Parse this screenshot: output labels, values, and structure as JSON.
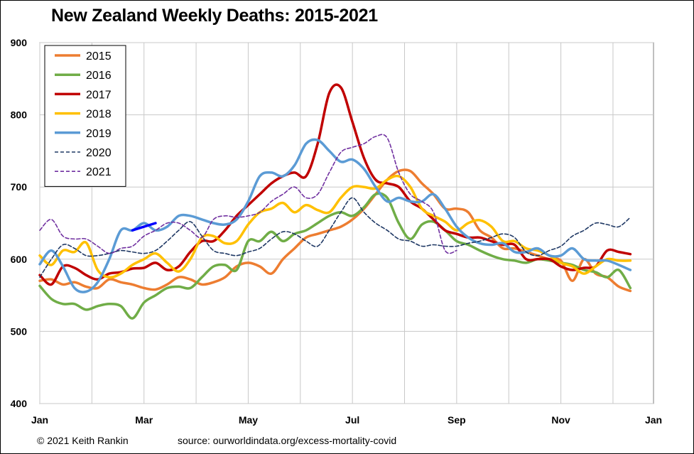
{
  "title": "New Zealand Weekly Deaths: 2015-2021",
  "footer": {
    "copyright": "© 2021 Keith Rankin",
    "source": "source:  ourworldindata.org/excess-mortality-covid"
  },
  "chart_data": {
    "type": "line",
    "title": "New Zealand Weekly Deaths: 2015-2021",
    "xlabel": "",
    "ylabel": "",
    "ylim": [
      400,
      900
    ],
    "y_ticks": [
      400,
      500,
      600,
      700,
      800,
      900
    ],
    "x_unit": "week",
    "xlim": [
      1,
      53
    ],
    "x_tick_labels": [
      "Jan",
      "Mar",
      "May",
      "Jul",
      "Sep",
      "Nov",
      "Jan"
    ],
    "x_tick_weeks": [
      1,
      10,
      19,
      28,
      37,
      46,
      54
    ],
    "grid": true,
    "legend_position": "top-left",
    "series": [
      {
        "name": "2015",
        "color": "#ED7D31",
        "style": "solid",
        "weeks": [
          1,
          2,
          3,
          4,
          5,
          6,
          7,
          8,
          9,
          10,
          11,
          12,
          13,
          14,
          15,
          16,
          17,
          18,
          19,
          20,
          21,
          22,
          23,
          24,
          25,
          26,
          27,
          28,
          29,
          30,
          31,
          32,
          33,
          34,
          35,
          36,
          37,
          38,
          39,
          40,
          41,
          42,
          43,
          44,
          45,
          46,
          47,
          48,
          49,
          50,
          51,
          52
        ],
        "values": [
          570,
          572,
          565,
          568,
          562,
          560,
          572,
          568,
          565,
          560,
          558,
          565,
          575,
          572,
          565,
          568,
          575,
          590,
          595,
          590,
          580,
          600,
          615,
          630,
          635,
          640,
          645,
          655,
          670,
          690,
          710,
          722,
          722,
          705,
          690,
          670,
          670,
          665,
          640,
          630,
          615,
          615,
          610,
          605,
          600,
          598,
          570,
          600,
          580,
          575,
          562,
          556
        ]
      },
      {
        "name": "2016",
        "color": "#70AD47",
        "style": "solid",
        "weeks": [
          1,
          2,
          3,
          4,
          5,
          6,
          7,
          8,
          9,
          10,
          11,
          12,
          13,
          14,
          15,
          16,
          17,
          18,
          19,
          20,
          21,
          22,
          23,
          24,
          25,
          26,
          27,
          28,
          29,
          30,
          31,
          32,
          33,
          34,
          35,
          36,
          37,
          38,
          39,
          40,
          41,
          42,
          43,
          44,
          45,
          46,
          47,
          48,
          49,
          50,
          51,
          52
        ],
        "values": [
          563,
          545,
          538,
          538,
          530,
          535,
          538,
          535,
          518,
          540,
          550,
          560,
          562,
          560,
          575,
          590,
          592,
          585,
          625,
          625,
          638,
          625,
          635,
          640,
          650,
          660,
          665,
          660,
          672,
          690,
          685,
          650,
          628,
          648,
          652,
          640,
          625,
          620,
          612,
          605,
          600,
          598,
          595,
          600,
          598,
          595,
          592,
          585,
          582,
          575,
          585,
          560
        ]
      },
      {
        "name": "2017",
        "color": "#C00000",
        "style": "solid",
        "weeks": [
          1,
          2,
          3,
          4,
          5,
          6,
          7,
          8,
          9,
          10,
          11,
          12,
          13,
          14,
          15,
          16,
          17,
          18,
          19,
          20,
          21,
          22,
          23,
          24,
          25,
          26,
          27,
          28,
          29,
          30,
          31,
          32,
          33,
          34,
          35,
          36,
          37,
          38,
          39,
          40,
          41,
          42,
          43,
          44,
          45,
          46,
          47,
          48,
          49,
          50,
          51,
          52
        ],
        "values": [
          578,
          565,
          590,
          588,
          578,
          572,
          580,
          582,
          587,
          588,
          595,
          585,
          590,
          610,
          625,
          625,
          640,
          660,
          675,
          690,
          705,
          715,
          720,
          715,
          760,
          830,
          838,
          790,
          740,
          710,
          705,
          700,
          680,
          670,
          655,
          640,
          635,
          630,
          630,
          625,
          620,
          620,
          600,
          600,
          600,
          590,
          585,
          588,
          590,
          612,
          610,
          607
        ]
      },
      {
        "name": "2018",
        "color": "#FFC000",
        "style": "solid",
        "weeks": [
          1,
          2,
          3,
          4,
          5,
          6,
          7,
          8,
          9,
          10,
          11,
          12,
          13,
          14,
          15,
          16,
          17,
          18,
          19,
          20,
          21,
          22,
          23,
          24,
          25,
          26,
          27,
          28,
          29,
          30,
          31,
          32,
          33,
          34,
          35,
          36,
          37,
          38,
          39,
          40,
          41,
          42,
          43,
          44,
          45,
          46,
          47,
          48,
          49,
          50,
          51,
          52
        ],
        "values": [
          605,
          592,
          612,
          610,
          623,
          585,
          575,
          580,
          592,
          600,
          608,
          595,
          583,
          600,
          630,
          632,
          622,
          625,
          648,
          665,
          670,
          678,
          665,
          675,
          668,
          665,
          685,
          700,
          700,
          698,
          710,
          715,
          700,
          670,
          660,
          652,
          640,
          650,
          654,
          645,
          625,
          625,
          615,
          612,
          605,
          595,
          590,
          580,
          590,
          600,
          598,
          598
        ]
      },
      {
        "name": "2019",
        "color": "#5B9BD5",
        "style": "solid",
        "weeks": [
          1,
          2,
          3,
          4,
          5,
          6,
          7,
          8,
          9,
          10,
          11,
          12,
          13,
          14,
          15,
          16,
          17,
          18,
          19,
          20,
          21,
          22,
          23,
          24,
          25,
          26,
          27,
          28,
          29,
          30,
          31,
          32,
          33,
          34,
          35,
          36,
          37,
          38,
          39,
          40,
          41,
          42,
          43,
          44,
          45,
          46,
          47,
          48,
          49,
          50,
          51,
          52
        ],
        "values": [
          593,
          612,
          590,
          560,
          555,
          568,
          600,
          640,
          640,
          650,
          640,
          645,
          660,
          660,
          655,
          650,
          648,
          655,
          680,
          715,
          720,
          715,
          730,
          760,
          765,
          750,
          735,
          738,
          725,
          700,
          680,
          685,
          680,
          680,
          690,
          670,
          645,
          630,
          622,
          620,
          622,
          610,
          610,
          615,
          605,
          605,
          615,
          600,
          598,
          598,
          592,
          585
        ]
      },
      {
        "name": "2020",
        "color": "#1F3864",
        "style": "dashed",
        "weeks": [
          1,
          2,
          3,
          4,
          5,
          6,
          7,
          8,
          9,
          10,
          11,
          12,
          13,
          14,
          15,
          16,
          17,
          18,
          19,
          20,
          21,
          22,
          23,
          24,
          25,
          26,
          27,
          28,
          29,
          30,
          31,
          32,
          33,
          34,
          35,
          36,
          37,
          38,
          39,
          40,
          41,
          42,
          43,
          44,
          45,
          46,
          47,
          48,
          49,
          50,
          51,
          52
        ],
        "values": [
          575,
          600,
          620,
          615,
          605,
          605,
          608,
          612,
          610,
          608,
          612,
          625,
          640,
          652,
          632,
          612,
          608,
          605,
          610,
          615,
          628,
          638,
          635,
          625,
          618,
          640,
          665,
          685,
          665,
          650,
          640,
          628,
          625,
          618,
          620,
          618,
          618,
          622,
          625,
          630,
          635,
          630,
          610,
          605,
          612,
          618,
          632,
          640,
          650,
          648,
          645,
          658
        ]
      },
      {
        "name": "2021",
        "color": "#7030A0",
        "style": "dashed",
        "weeks": [
          1,
          2,
          3,
          4,
          5,
          6,
          7,
          8,
          9,
          10,
          11,
          12,
          13,
          14,
          15,
          16,
          17,
          18,
          19,
          20,
          21,
          22,
          23,
          24,
          25,
          26,
          27,
          28,
          29,
          30,
          31,
          32,
          33,
          34,
          35,
          36,
          37
        ],
        "values": [
          640,
          655,
          632,
          628,
          628,
          618,
          608,
          615,
          618,
          632,
          640,
          650,
          650,
          640,
          630,
          655,
          660,
          658,
          660,
          665,
          680,
          690,
          700,
          685,
          690,
          720,
          748,
          755,
          760,
          770,
          768,
          720,
          690,
          680,
          665,
          612,
          612
        ]
      }
    ],
    "highlight": {
      "color": "#0000FF",
      "weeks": [
        9,
        10,
        11
      ],
      "values": [
        640,
        645,
        650
      ]
    }
  }
}
